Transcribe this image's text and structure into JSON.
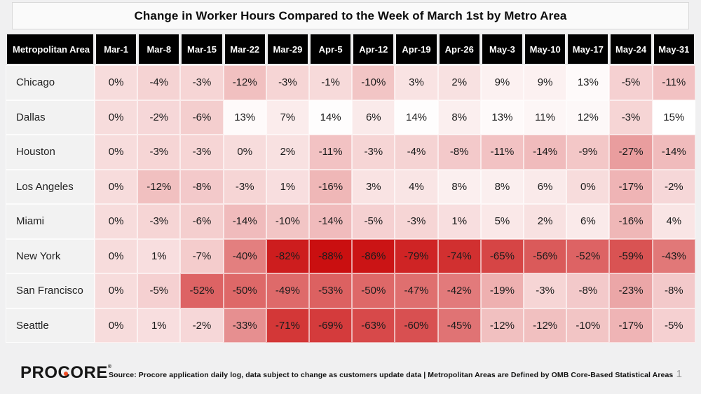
{
  "header": {
    "title": "Change in Worker Hours Compared to the Week of March 1st by Metro Area"
  },
  "chart_data": {
    "type": "heatmap",
    "title": "Change in Worker Hours Compared to the Week of March 1st by Metro Area",
    "corner_label": "Metropolitan Area",
    "x_categories": [
      "Mar-1",
      "Mar-8",
      "Mar-15",
      "Mar-22",
      "Mar-29",
      "Apr-5",
      "Apr-12",
      "Apr-19",
      "Apr-26",
      "May-3",
      "May-10",
      "May-17",
      "May-24",
      "May-31"
    ],
    "y_categories": [
      "Chicago",
      "Dallas",
      "Houston",
      "Los Angeles",
      "Miami",
      "New York",
      "San Francisco",
      "Seattle"
    ],
    "values_percent": [
      [
        0,
        -4,
        -3,
        -12,
        -3,
        -1,
        -10,
        3,
        2,
        9,
        9,
        13,
        -5,
        -11
      ],
      [
        0,
        -2,
        -6,
        13,
        7,
        14,
        6,
        14,
        8,
        13,
        11,
        12,
        -3,
        15
      ],
      [
        0,
        -3,
        -3,
        0,
        2,
        -11,
        -3,
        -4,
        -8,
        -11,
        -14,
        -9,
        -27,
        -14
      ],
      [
        0,
        -12,
        -8,
        -3,
        1,
        -16,
        3,
        4,
        8,
        8,
        6,
        0,
        -17,
        -2
      ],
      [
        0,
        -3,
        -6,
        -14,
        -10,
        -14,
        -5,
        -3,
        1,
        5,
        2,
        6,
        -16,
        4
      ],
      [
        0,
        1,
        -7,
        -40,
        -82,
        -88,
        -86,
        -79,
        -74,
        -65,
        -56,
        -52,
        -59,
        -43
      ],
      [
        0,
        -5,
        -52,
        -50,
        -49,
        -53,
        -50,
        -47,
        -42,
        -19,
        -3,
        -8,
        -23,
        -8
      ],
      [
        0,
        1,
        -2,
        -33,
        -71,
        -69,
        -63,
        -60,
        -45,
        -12,
        -12,
        -10,
        -17,
        -5
      ]
    ],
    "value_suffix": "%",
    "color_scale": {
      "min_value": -88,
      "max_value": 15,
      "min_color": "#CA0F10",
      "max_color": "#FFFFFF"
    },
    "layout": {
      "header_bg": "#000000",
      "header_text": "#FFFFFF",
      "row_label_bg": "#F2F2F2"
    }
  },
  "footer": {
    "logo_text_pre": "PRO",
    "logo_text_c": "C",
    "logo_text_post": "ORE",
    "logo_mark": "®",
    "logo_dot_color": "#F04B23",
    "source": "Source: Procore application daily log, data subject to change as customers update data | Metropolitan Areas are Defined by OMB Core-Based Statistical Areas",
    "page_number": "1"
  }
}
